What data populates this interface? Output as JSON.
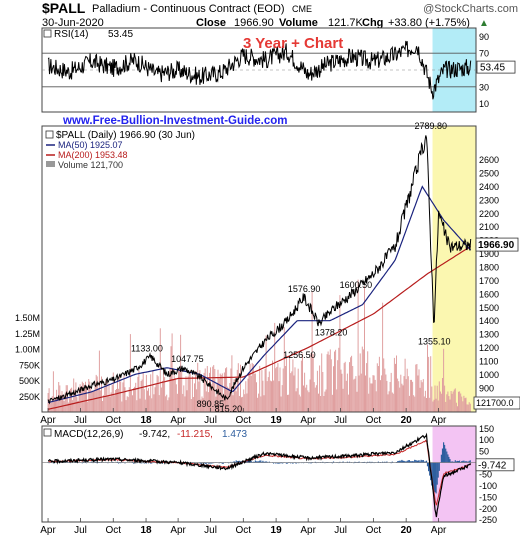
{
  "header": {
    "symbol": "$PALL",
    "name": "Palladium - Continuous Contract (EOD)",
    "exchange": "CME",
    "watermark": "@StockCharts.com",
    "date": "30-Jun-2020",
    "close_label": "Close",
    "close_value": "1966.90",
    "volume_label": "Volume",
    "volume_value": "121.7K",
    "chg_label": "Chg",
    "chg_value": "+33.80 (+1.75%)",
    "chg_arrow": "▲"
  },
  "annotation": "3 Year + Chart",
  "site_url": "www.Free-Bullion-Investment-Guide.com",
  "colors": {
    "price": "#000000",
    "ma50": "#1a237e",
    "ma200": "#b71c1c",
    "volume": "#e0a0a0",
    "rsi": "#000000",
    "macd": "#000000",
    "macd_signal": "#c62828",
    "macd_hist": "#2f5f9f",
    "highlight_rsi": "#b3ecf7",
    "highlight_price": "#fbf7b0",
    "highlight_macd": "#f3c4f3",
    "url_text": "#2222ee",
    "annotation_text": "#e53935"
  },
  "chart_data": [
    {
      "type": "line",
      "panel": "RSI",
      "legend": {
        "label": "RSI(14)",
        "value": "53.45"
      },
      "ylim": [
        0,
        100
      ],
      "y_ticks": [
        "90",
        "70",
        "50",
        "30",
        "10"
      ],
      "levels": [
        70,
        30
      ],
      "last_value_label": "53.45",
      "x": [
        "2017-04-01",
        "2017-06-01",
        "2017-08-01",
        "2017-10-01",
        "2017-12-01",
        "2018-02-01",
        "2018-04-01",
        "2018-06-01",
        "2018-08-01",
        "2018-10-01",
        "2018-12-01",
        "2019-02-01",
        "2019-04-01",
        "2019-06-01",
        "2019-08-01",
        "2019-10-01",
        "2019-12-01",
        "2020-02-01",
        "2020-03-15",
        "2020-04-15",
        "2020-06-30"
      ],
      "y": [
        55,
        48,
        60,
        52,
        62,
        45,
        50,
        42,
        47,
        68,
        62,
        72,
        45,
        58,
        66,
        60,
        68,
        80,
        25,
        50,
        53.45
      ]
    },
    {
      "type": "line",
      "panel": "Price",
      "title": "$PALL (Daily) 1966.90 (30 Jun)",
      "ylim": [
        720,
        2850
      ],
      "y_ticks": [
        "2600",
        "2500",
        "2400",
        "2300",
        "2200",
        "2100",
        "2000",
        "1900",
        "1800",
        "1700",
        "1600",
        "1500",
        "1400",
        "1300",
        "1200",
        "1100",
        "1000",
        "900",
        "800"
      ],
      "last_price_label": "1966.90",
      "last_volume_label": "121700.0",
      "series": [
        {
          "name": "$PALL (Daily) 1966.90 (30 Jun)",
          "x": [
            "2017-04-01",
            "2017-06-01",
            "2017-08-01",
            "2017-10-01",
            "2017-12-01",
            "2018-01-15",
            "2018-03-01",
            "2018-04-15",
            "2018-06-01",
            "2018-08-15",
            "2018-10-01",
            "2018-12-01",
            "2019-02-01",
            "2019-03-20",
            "2019-05-01",
            "2019-06-15",
            "2019-08-01",
            "2019-10-01",
            "2019-12-01",
            "2020-02-27",
            "2020-03-19",
            "2020-04-01",
            "2020-05-01",
            "2020-06-30"
          ],
          "y": [
            800,
            850,
            920,
            960,
            1040,
            1133,
            1000,
            1047.75,
            980,
            815.2,
            1050,
            1250,
            1400,
            1576.9,
            1378.2,
            1500,
            1600.5,
            1750,
            1950,
            2789.8,
            1355.1,
            2200,
            1950,
            1966.9
          ]
        },
        {
          "name": "MA(50) 1925.07",
          "x": [
            "2017-04-01",
            "2017-08-01",
            "2017-12-01",
            "2018-03-01",
            "2018-06-01",
            "2018-09-01",
            "2018-12-01",
            "2019-03-01",
            "2019-06-01",
            "2019-09-01",
            "2019-12-01",
            "2020-02-15",
            "2020-04-15",
            "2020-06-30"
          ],
          "y": [
            790,
            870,
            1000,
            1050,
            1000,
            870,
            1150,
            1400,
            1400,
            1520,
            1850,
            2400,
            2150,
            1925.07
          ]
        },
        {
          "name": "MA(200) 1953.48",
          "x": [
            "2017-04-01",
            "2017-10-01",
            "2018-04-01",
            "2018-10-01",
            "2019-04-01",
            "2019-10-01",
            "2020-03-01",
            "2020-06-30"
          ],
          "y": [
            740,
            850,
            970,
            980,
            1200,
            1450,
            1750,
            1953.48
          ]
        },
        {
          "name": "Volume 121,700",
          "x": [
            "2017-04-01",
            "2017-10-01",
            "2018-04-01",
            "2018-10-01",
            "2019-04-01",
            "2019-10-01",
            "2020-03-01",
            "2020-06-30"
          ],
          "y": [
            300000,
            400000,
            450000,
            500000,
            600000,
            700000,
            450000,
            121700
          ]
        }
      ],
      "annotations": [
        "2789.80",
        "1576.90",
        "1600.50",
        "1378.20",
        "1256.50",
        "1133.00",
        "1047.75",
        "890.85",
        "815.20",
        "1355.10"
      ],
      "volume_ticks": [
        "1.50M",
        "1.25M",
        "1.00M",
        "750K",
        "500K",
        "250K"
      ]
    },
    {
      "type": "line",
      "panel": "MACD",
      "legend": {
        "label": "MACD(12,26,9)",
        "v1": "-9.742,",
        "v2": "-11.215,",
        "v3": "1.473"
      },
      "ylim": [
        -260,
        160
      ],
      "y_ticks": [
        "150",
        "100",
        "50",
        "0",
        "-50",
        "-100",
        "-150",
        "-200",
        "-250"
      ],
      "last_value_label": "-9.742",
      "x": [
        "2017-04-01",
        "2017-10-01",
        "2018-04-01",
        "2018-08-15",
        "2018-12-01",
        "2019-04-01",
        "2019-08-01",
        "2019-12-01",
        "2020-02-27",
        "2020-03-25",
        "2020-04-15",
        "2020-06-30"
      ],
      "y": [
        5,
        15,
        0,
        -25,
        40,
        20,
        30,
        45,
        120,
        -240,
        -60,
        -9.742
      ]
    }
  ],
  "x_axis": {
    "labels": [
      "Apr",
      "Jul",
      "Oct",
      "18",
      "Apr",
      "Jul",
      "Oct",
      "19",
      "Apr",
      "Jul",
      "Oct",
      "20",
      "Apr"
    ],
    "dates": [
      "2017-04-01",
      "2017-07-01",
      "2017-10-01",
      "2018-01-01",
      "2018-04-01",
      "2018-07-01",
      "2018-10-01",
      "2019-01-01",
      "2019-04-01",
      "2019-07-01",
      "2019-10-01",
      "2020-01-01",
      "2020-04-01"
    ],
    "start": "2017-03-15",
    "end": "2020-07-15",
    "highlight_start": "2020-03-15"
  }
}
